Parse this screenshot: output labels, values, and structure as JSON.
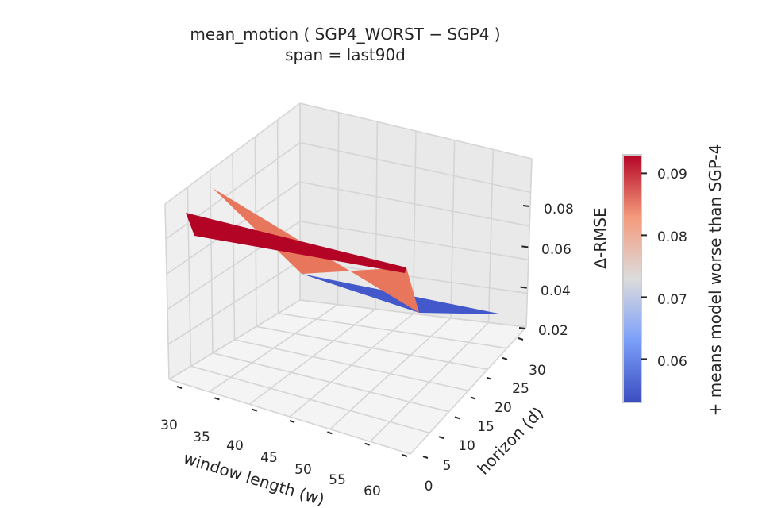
{
  "chart_data": {
    "type": "surface3d",
    "title": "mean_motion  ( SGP4_WORST − SGP4 )",
    "subtitle": "span = last90d",
    "xlabel": "window length (w)",
    "ylabel": "horizon (d)",
    "zlabel": "Δ-RMSE",
    "colorbar_label": "+ means model worse than SGP-4",
    "x_ticks": [
      "30",
      "35",
      "40",
      "45",
      "50",
      "55",
      "60"
    ],
    "y_ticks": [
      "0",
      "5",
      "10",
      "15",
      "20",
      "25",
      "30"
    ],
    "z_ticks": [
      "0.02",
      "0.04",
      "0.06",
      "0.08"
    ],
    "colorbar_ticks": [
      "0.06",
      "0.07",
      "0.08",
      "0.09"
    ],
    "xlim": [
      30,
      60
    ],
    "ylim": [
      0,
      30
    ],
    "zlim": [
      0.02,
      0.1
    ],
    "colorbar_range": [
      0.053,
      0.093
    ],
    "colormap": "coolwarm",
    "x": [
      30,
      60
    ],
    "y": [
      0,
      30
    ],
    "z": [
      [
        0.072,
        0.093
      ],
      [
        0.082,
        0.056
      ]
    ]
  }
}
